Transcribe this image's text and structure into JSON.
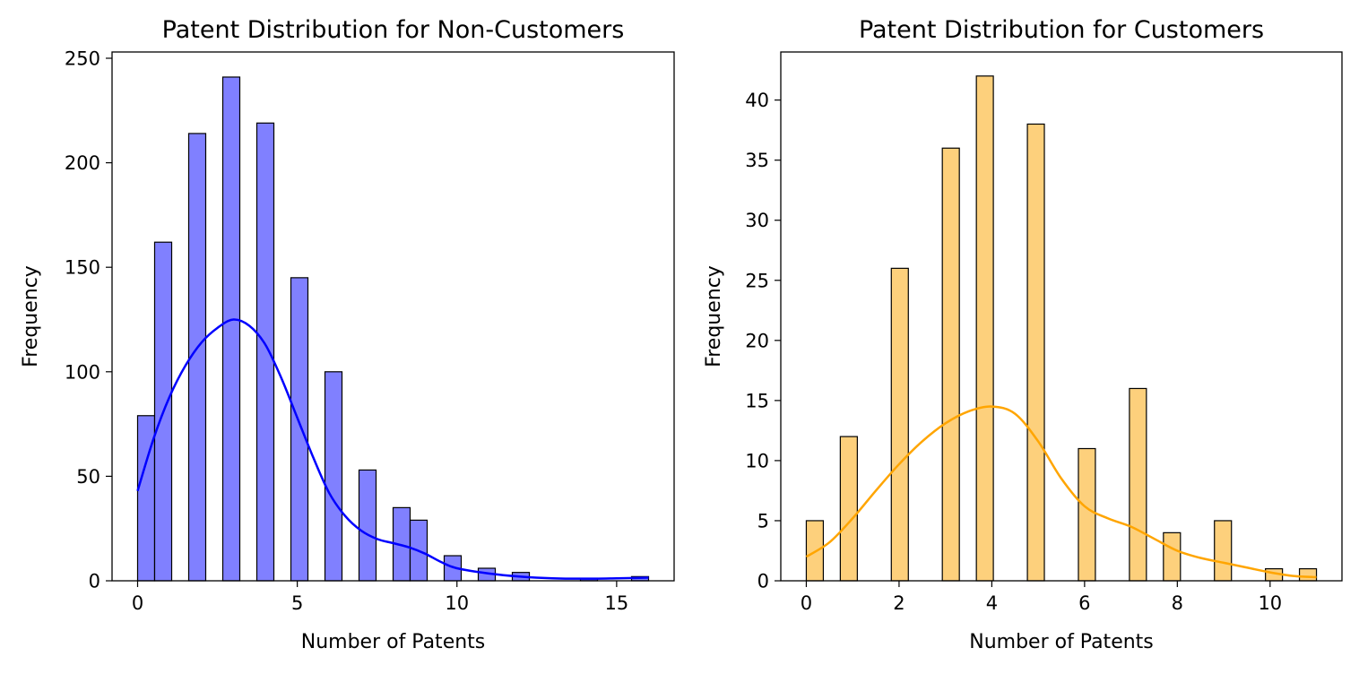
{
  "chart_data": [
    {
      "type": "bar",
      "title": "Patent Distribution for Non-Customers",
      "xlabel": "Number of Patents",
      "ylabel": "Frequency",
      "xlim": [
        -0.8,
        16.8
      ],
      "ylim": [
        0,
        253
      ],
      "xticks": [
        0,
        5,
        10,
        15
      ],
      "yticks": [
        0,
        50,
        100,
        150,
        200,
        250
      ],
      "grid": false,
      "bar_color": "#8080ff",
      "bar_edge_color": "#000000",
      "kde_color": "#0000ff",
      "bins": [
        {
          "x0": 0.0,
          "x1": 0.533,
          "value": 79
        },
        {
          "x0": 0.533,
          "x1": 1.067,
          "value": 162
        },
        {
          "x0": 1.6,
          "x1": 2.133,
          "value": 214
        },
        {
          "x0": 2.667,
          "x1": 3.2,
          "value": 241
        },
        {
          "x0": 3.733,
          "x1": 4.267,
          "value": 219
        },
        {
          "x0": 4.8,
          "x1": 5.333,
          "value": 145
        },
        {
          "x0": 5.867,
          "x1": 6.4,
          "value": 100
        },
        {
          "x0": 6.933,
          "x1": 7.467,
          "value": 53
        },
        {
          "x0": 8.0,
          "x1": 8.533,
          "value": 35
        },
        {
          "x0": 8.533,
          "x1": 9.067,
          "value": 29
        },
        {
          "x0": 9.6,
          "x1": 10.133,
          "value": 12
        },
        {
          "x0": 10.667,
          "x1": 11.2,
          "value": 6
        },
        {
          "x0": 11.733,
          "x1": 12.267,
          "value": 4
        },
        {
          "x0": 13.867,
          "x1": 14.4,
          "value": 1
        },
        {
          "x0": 15.467,
          "x1": 16.0,
          "value": 2
        }
      ],
      "kde": {
        "x": [
          0,
          0.5,
          1,
          1.5,
          2,
          2.5,
          3,
          3.5,
          4,
          4.5,
          5,
          5.5,
          6,
          6.5,
          7,
          7.5,
          8,
          8.5,
          9,
          9.5,
          10,
          11,
          12,
          13,
          14,
          15,
          16
        ],
        "y": [
          43,
          68,
          88,
          103,
          114,
          121,
          125,
          122,
          113,
          97,
          78,
          59,
          42,
          31,
          24,
          20,
          18,
          16,
          13,
          9,
          6,
          3.5,
          2,
          1.2,
          1,
          1.2,
          1.5
        ]
      }
    },
    {
      "type": "bar",
      "title": "Patent Distribution for Customers",
      "xlabel": "Number of Patents",
      "ylabel": "Frequency",
      "xlim": [
        -0.55,
        11.55
      ],
      "ylim": [
        0,
        44
      ],
      "xticks": [
        0,
        2,
        4,
        6,
        8,
        10
      ],
      "yticks": [
        0,
        5,
        10,
        15,
        20,
        25,
        30,
        35,
        40
      ],
      "grid": false,
      "bar_color": "#fdd07c",
      "bar_edge_color": "#000000",
      "kde_color": "#ffa500",
      "bins": [
        {
          "x0": 0.0,
          "x1": 0.367,
          "value": 5
        },
        {
          "x0": 0.733,
          "x1": 1.1,
          "value": 12
        },
        {
          "x0": 1.833,
          "x1": 2.2,
          "value": 26
        },
        {
          "x0": 2.933,
          "x1": 3.3,
          "value": 36
        },
        {
          "x0": 3.667,
          "x1": 4.033,
          "value": 42
        },
        {
          "x0": 4.767,
          "x1": 5.133,
          "value": 38
        },
        {
          "x0": 5.867,
          "x1": 6.233,
          "value": 11
        },
        {
          "x0": 6.967,
          "x1": 7.333,
          "value": 16
        },
        {
          "x0": 7.7,
          "x1": 8.067,
          "value": 4
        },
        {
          "x0": 8.8,
          "x1": 9.167,
          "value": 5
        },
        {
          "x0": 9.9,
          "x1": 10.267,
          "value": 1
        },
        {
          "x0": 10.633,
          "x1": 11.0,
          "value": 1
        }
      ],
      "kde": {
        "x": [
          0,
          0.5,
          1,
          1.5,
          2,
          2.5,
          3,
          3.5,
          4,
          4.5,
          5,
          5.5,
          6,
          6.5,
          7,
          7.5,
          8,
          8.5,
          9,
          9.5,
          10,
          10.5,
          11
        ],
        "y": [
          2,
          3.2,
          5.2,
          7.5,
          9.7,
          11.6,
          13.1,
          14.1,
          14.5,
          13.9,
          11.6,
          8.5,
          6.2,
          5.2,
          4.5,
          3.5,
          2.5,
          1.9,
          1.5,
          1.1,
          0.7,
          0.4,
          0.3
        ]
      }
    }
  ]
}
